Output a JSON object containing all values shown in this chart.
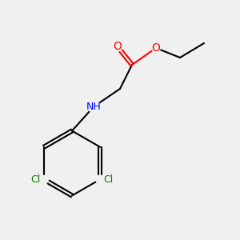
{
  "background_color": "#f0f0f0",
  "bond_color": "#000000",
  "atom_colors": {
    "O": "#ff0000",
    "N": "#0000ff",
    "Cl": "#008000",
    "C": "#000000",
    "H": "#000000"
  },
  "title": "",
  "figsize": [
    3.0,
    3.0
  ],
  "dpi": 100
}
